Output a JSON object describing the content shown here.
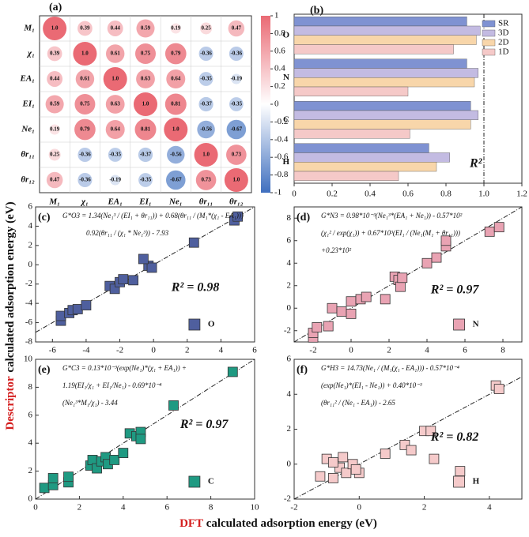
{
  "figure": {
    "ylabel": {
      "highlight": "Descriptor",
      "text": "calculated adsorption energy (eV)"
    },
    "xlabel": {
      "highlight": "DFT",
      "text": "calculated adsorption energy (eV)"
    }
  },
  "chart_data": [
    {
      "type": "correlation",
      "label": "(a)",
      "labels": [
        "M₁",
        "χ₁",
        "EA₁",
        "EI₁",
        "Ne₁",
        "θr₁₁",
        "θr₁₂"
      ],
      "values": [
        [
          1,
          0.39,
          0.44,
          0.59,
          0.19,
          0.25,
          0.47
        ],
        [
          0.39,
          1,
          0.61,
          0.75,
          0.79,
          -0.36,
          -0.36
        ],
        [
          0.44,
          0.61,
          1,
          0.63,
          0.64,
          -0.35,
          -0.19
        ],
        [
          0.59,
          0.75,
          0.63,
          1,
          0.81,
          -0.37,
          -0.35
        ],
        [
          0.19,
          0.79,
          0.64,
          0.81,
          1,
          -0.56,
          -0.67
        ],
        [
          0.25,
          -0.36,
          -0.35,
          -0.37,
          -0.56,
          1,
          0.73
        ],
        [
          0.47,
          -0.36,
          -0.19,
          -0.35,
          -0.67,
          0.73,
          1
        ]
      ],
      "value_labels": [
        [
          "1.0",
          "0.39",
          "0.44",
          "0.59",
          "0.19",
          "0.25",
          "0.47"
        ],
        [
          "0.39",
          "1.0",
          "0.61",
          "0.75",
          "0.79",
          "-0.36",
          "-0.36"
        ],
        [
          "0.44",
          "0.61",
          "1.0",
          "0.63",
          "0.64",
          "-0.35",
          "-0.19"
        ],
        [
          "0.59",
          "0.75",
          "0.63",
          "1.0",
          "0.81",
          "-0.37",
          "-0.35"
        ],
        [
          "0.19",
          "0.79",
          "0.64",
          "0.81",
          "1.0",
          "-0.56",
          "-0.67"
        ],
        [
          "0.25",
          "-0.36",
          "-0.35",
          "-0.37",
          "-0.56",
          "1.0",
          "0.73"
        ],
        [
          "0.47",
          "-0.36",
          "-0.19",
          "-0.35",
          "-0.67",
          "0.73",
          "1.0"
        ]
      ],
      "colormap": [
        "#3f6fbf",
        "#ffffff",
        "#ea6a74"
      ],
      "clim": [
        -1,
        1
      ],
      "cticks": [
        1,
        0.8,
        0.6,
        0.4,
        0.2,
        0,
        -0.2,
        -0.4,
        -0.6,
        -0.8,
        -1
      ]
    },
    {
      "type": "bar",
      "orientation": "horizontal",
      "label": "(b)",
      "categories": [
        "O",
        "N",
        "C",
        "H"
      ],
      "series": [
        {
          "name": "SR",
          "color": "#7f92d2",
          "values": [
            0.91,
            0.91,
            0.93,
            0.71
          ]
        },
        {
          "name": "3D",
          "color": "#c3bbe2",
          "values": [
            0.98,
            0.97,
            0.97,
            0.82
          ]
        },
        {
          "name": "2D",
          "color": "#f8d6aa",
          "values": [
            0.96,
            0.95,
            0.93,
            0.75
          ]
        },
        {
          "name": "1D",
          "color": "#f5c9c8",
          "values": [
            0.84,
            0.6,
            0.61,
            0.55
          ]
        }
      ],
      "xlim": [
        0,
        1.2
      ],
      "xticks": [
        0,
        0.2,
        0.4,
        0.6,
        0.8,
        {
          "value": 1,
          "label": "1.0"
        },
        1.2
      ],
      "refline": 1,
      "legend": "top-right",
      "annotation": "R²"
    },
    {
      "type": "scatter",
      "label": "(c)",
      "equation": [
        "G*O3 = 1.34(Ne₁³ / (EI₁ + θr₁₁)) + 0.68(θr₁₁ / (M₁*(χ₁ - EA₁)))",
        "0.92(θr₁₁ / (χ₁ * Ne₁³)) - 7.93"
      ],
      "annotation": "R² = 0.98",
      "series": [
        {
          "name": "O",
          "color": "#4f5f9e",
          "x": [
            -5.5,
            -5.5,
            -5,
            -4.8,
            -4.5,
            -4,
            -2.6,
            -2.3,
            -2,
            -1.8,
            -1.2,
            -0.3,
            -0.1,
            -0.6,
            2.4,
            4.8,
            5
          ],
          "values": [
            -5.8,
            -5.3,
            -5,
            -4.7,
            -4.6,
            -4.2,
            -2.2,
            -2.5,
            -1.8,
            -1.5,
            -1.6,
            -0.1,
            -0.3,
            0.6,
            2.3,
            4.6,
            5
          ]
        }
      ],
      "xlim": [
        -7,
        6
      ],
      "xticks": [
        -6,
        -4,
        -2,
        0,
        2,
        4,
        6
      ],
      "ylim": [
        -8,
        6
      ],
      "yticks": [
        -8,
        -6,
        -4,
        -2,
        0,
        2,
        4,
        6
      ]
    },
    {
      "type": "scatter",
      "label": "(d)",
      "equation": [
        "G*N3 = 0.98*10⁻³(Ne₁³*(EA₁ + Ne₁)) - 0.57*10²",
        "(χ₁² / exp(χ₁)) + 0.67*10³(EI₁ / (Ne₁(M₁ + θr₁₁)))",
        "+0.23*10²"
      ],
      "annotation": "R² = 0.97",
      "series": [
        {
          "name": "N",
          "color": "#e9a3b3",
          "x": [
            -2,
            -2,
            -1.8,
            -1.2,
            -1,
            -0.5,
            0,
            0,
            0.5,
            0.8,
            1.8,
            2.3,
            2.5,
            2.6,
            2.7,
            4,
            4.5,
            5,
            5,
            7.3,
            7.8
          ],
          "values": [
            -2.6,
            -2.2,
            -1.7,
            -1.6,
            0,
            -0.3,
            -0.5,
            0.6,
            0.8,
            1,
            0.8,
            2.8,
            2.5,
            1.9,
            2.7,
            4,
            4.5,
            5.5,
            6,
            6.8,
            7.2
          ]
        }
      ],
      "xlim": [
        -3,
        9
      ],
      "xticks": [
        -2,
        0,
        2,
        4,
        6,
        8
      ],
      "ylim": [
        -3,
        9
      ],
      "yticks": [
        -2,
        0,
        2,
        4,
        6,
        8
      ]
    },
    {
      "type": "scatter",
      "label": "(e)",
      "equation": [
        "G*C3 = 0.13*10⁻³(exp(Ne₁)*(χ₁ + EA₁)) +",
        "1.19(EI₁/χ₁ + EI₁/Ne₁) - 0.69*10⁻⁴",
        "(Ne₁³*M₁/χ₁) - 3.44"
      ],
      "annotation": "R² = 0.97",
      "series": [
        {
          "name": "C",
          "color": "#1f9a82",
          "x": [
            0.4,
            0.8,
            0.8,
            1.5,
            1.5,
            2.5,
            2.6,
            2.8,
            3,
            3.2,
            3.3,
            3.6,
            4,
            4.3,
            4.6,
            4.8,
            4.8,
            6.3,
            9
          ],
          "values": [
            0.8,
            1,
            1.5,
            1.2,
            1.6,
            2.4,
            2.8,
            2.2,
            2.7,
            3,
            2.5,
            2.8,
            3.3,
            4.7,
            4.5,
            4.8,
            4.3,
            6.7,
            9.1
          ]
        }
      ],
      "xlim": [
        0,
        10
      ],
      "xticks": [
        0,
        2,
        4,
        6,
        8,
        10
      ],
      "ylim": [
        0,
        10
      ],
      "yticks": [
        0,
        2,
        4,
        6,
        8,
        10
      ]
    },
    {
      "type": "scatter",
      "label": "(f)",
      "equation": [
        "G*H3 = 14.73(Ne₁ / (M₁(χ₁ - EA₁))) - 0.57*10⁻⁴",
        "(exp(Ne₁)*(EI₁ - Ne₁)) + 0.40*10⁻³",
        "(θr₁₁² / (Ne₁ - EA₁)) - 2.65"
      ],
      "annotation": "R² = 0.82",
      "series": [
        {
          "name": "H",
          "color": "#f5caca",
          "x": [
            -1.2,
            -1,
            -0.8,
            -0.6,
            -0.5,
            -0.4,
            -0.2,
            0,
            -0.8,
            0.8,
            1.4,
            1.6,
            2,
            2.2,
            2.3,
            3.1,
            4.2,
            4.3,
            -0.1
          ],
          "values": [
            -0.7,
            0.3,
            -0.8,
            -0.2,
            0.4,
            -0.5,
            0,
            -0.5,
            0.1,
            0.6,
            1.1,
            0.8,
            1.9,
            1.9,
            0.3,
            -0.4,
            4.5,
            4.3,
            -0.3
          ]
        }
      ],
      "xlim": [
        -2,
        5
      ],
      "xticks": [
        -2,
        0,
        2,
        4
      ],
      "ylim": [
        -2,
        6
      ],
      "yticks": [
        -2,
        0,
        2,
        4,
        6
      ]
    }
  ]
}
